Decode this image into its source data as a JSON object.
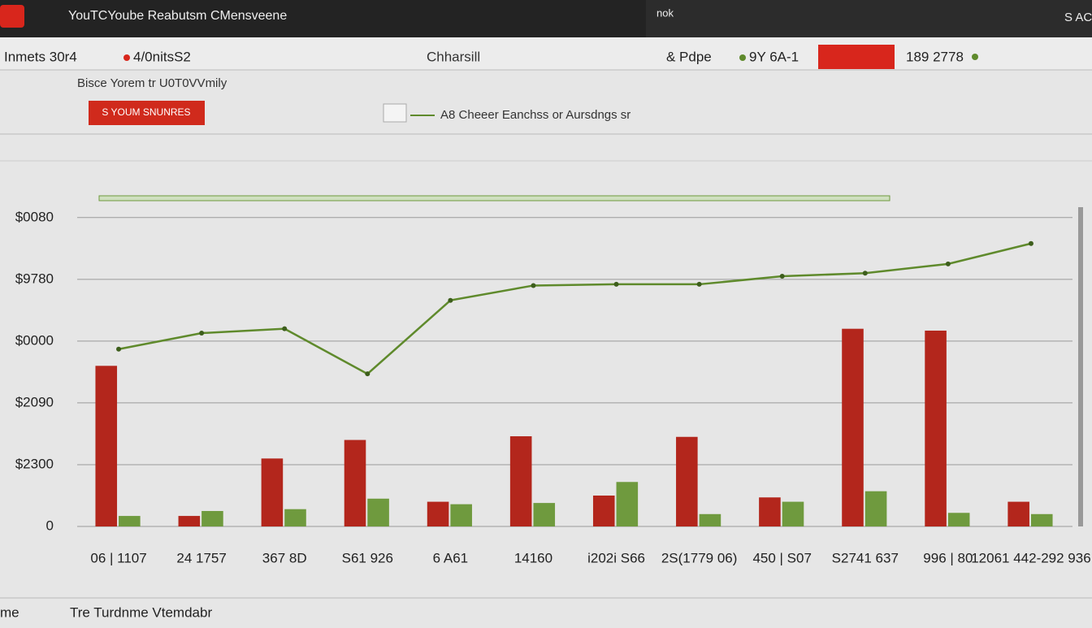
{
  "header": {
    "app_title": "YouTCYoube Reabutsm CMensveene",
    "right_label": "nok",
    "corner": "S AC"
  },
  "toolbar": {
    "left": "Inmets 30r4",
    "metric": "4/0nitsS2",
    "center": "Chharsill",
    "page": "& Pdpe",
    "stat": "9Y 6A-1",
    "total": "189 2778"
  },
  "chart_data": {
    "type": "bar",
    "subtitle": "Bisce Yorem tr U0T0VVmily",
    "categories": [
      "06 | 1107",
      "24 1757",
      "367 8D",
      "S61 926",
      "6 A61",
      "14160",
      "i202i S66",
      "2S(1779 06)",
      "450 | S07",
      "S2741 637",
      "996 | 80",
      "12061 442-292 936"
    ],
    "series": [
      {
        "name": "S YOUM SNUNRES",
        "type": "bar",
        "color": "#b3261c",
        "values": [
          2.6,
          0.17,
          1.1,
          1.4,
          0.4,
          1.46,
          0.5,
          1.45,
          0.47,
          3.2,
          3.17,
          0.4
        ]
      },
      {
        "type": "bar",
        "color": "#6f9a3e",
        "values": [
          0.17,
          0.25,
          0.28,
          0.45,
          0.36,
          0.38,
          0.72,
          0.2,
          0.4,
          0.57,
          0.22,
          0.2
        ]
      },
      {
        "name": "A8 Cheeer Eanchss or Aursdngs sr",
        "type": "line",
        "color": "#5f8a2c",
        "values": [
          2.87,
          3.13,
          3.2,
          2.47,
          3.66,
          3.9,
          3.92,
          3.92,
          4.05,
          4.1,
          4.25,
          4.58
        ]
      }
    ],
    "ylim": [
      0,
      5.3
    ],
    "yticks": [
      0,
      {
        "value": 1,
        "label": "$2300"
      },
      {
        "value": 2,
        "label": "$2090"
      },
      {
        "value": 3,
        "label": "$0000"
      },
      {
        "value": 4,
        "label": "$9780"
      },
      {
        "value": 5,
        "label": "$0080"
      }
    ],
    "grid": true
  },
  "footer": {
    "left": "me",
    "label": "Tre Turdnme Vtemdabr"
  }
}
